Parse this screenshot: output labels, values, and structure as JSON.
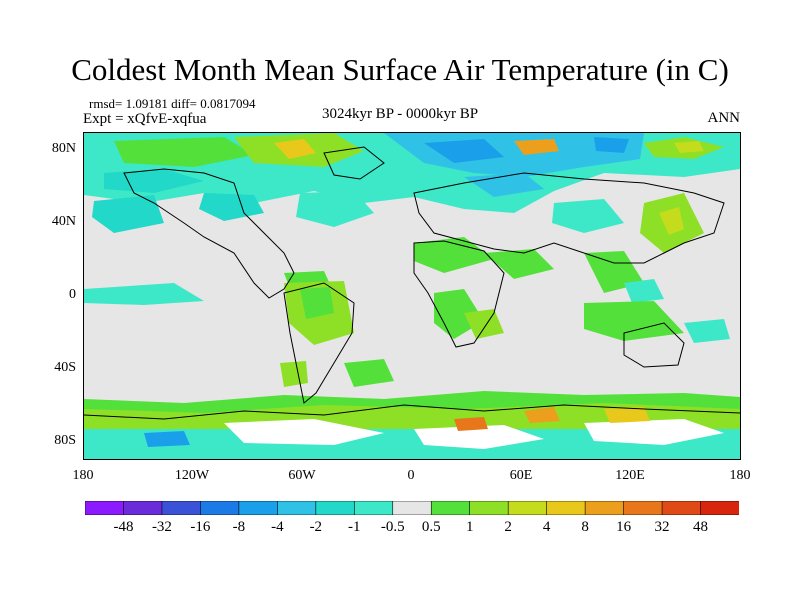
{
  "title": "Coldest Month Mean Surface Air Temperature (in C)",
  "stats": "rmsd= 1.09181 diff= 0.0817094",
  "expt": "Expt = xQfvE-xqfua",
  "period": "3024kyr BP - 0000kyr BP",
  "season": "ANN",
  "y_ticks": [
    "80N",
    "40N",
    "0",
    "40S",
    "80S"
  ],
  "y_tick_values": [
    80,
    40,
    0,
    -40,
    -80
  ],
  "x_ticks": [
    "180",
    "120W",
    "60W",
    "0",
    "60E",
    "120E",
    "180"
  ],
  "x_tick_values": [
    -180,
    -120,
    -60,
    0,
    60,
    120,
    180
  ],
  "lon_range": [
    -180,
    180
  ],
  "lat_range": [
    -90,
    90
  ],
  "colorbar": {
    "labels": [
      "-48",
      "-32",
      "-16",
      "-8",
      "-4",
      "-2",
      "-1",
      "-0.5",
      "0.5",
      "1",
      "2",
      "4",
      "8",
      "16",
      "32",
      "48"
    ],
    "colors": [
      "#8c1aff",
      "#6c2bdb",
      "#3a52d8",
      "#1c7ae6",
      "#1aa0ea",
      "#2fc2e6",
      "#22d8c8",
      "#3ce8c8",
      "#e6e6e6",
      "#54e03a",
      "#8ee026",
      "#c4dc1c",
      "#e8c81a",
      "#ec9f1c",
      "#e8761a",
      "#e04a16",
      "#d8260e"
    ]
  },
  "colors": {
    "missing": "#e6e6e6",
    "light_cyan": "#3ce8c8",
    "cyan": "#22d8c8",
    "blue_cyan": "#2fc2e6",
    "blue": "#1aa0ea",
    "light_green": "#54e03a",
    "green": "#8ee026",
    "yellow_green": "#c4dc1c",
    "yellow": "#e8c81a",
    "orange": "#ec9f1c",
    "red_orange": "#e8761a",
    "white_patch": "#ffffff"
  }
}
